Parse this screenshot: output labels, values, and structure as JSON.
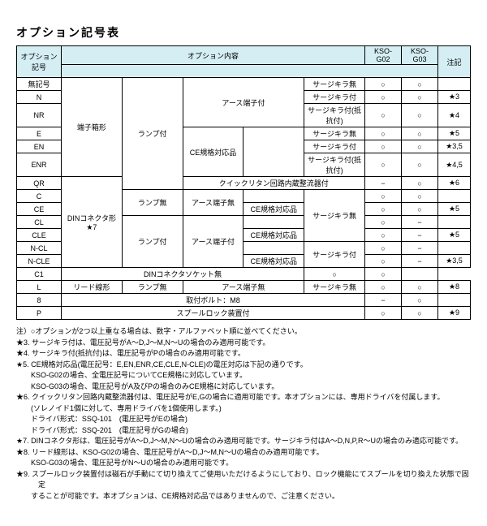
{
  "title": "オプション記号表",
  "headers": {
    "code": "オプション記号",
    "content": "オプション内容",
    "g02": "KSO-G02",
    "g03": "KSO-G03",
    "note": "注記"
  },
  "rows": [
    {
      "code": "無記号",
      "c5": "サージキラ無",
      "g02": "○",
      "g03": "○",
      "note": ""
    },
    {
      "code": "N",
      "c5": "サージキラ付",
      "g02": "○",
      "g03": "○",
      "note": "★3"
    },
    {
      "code": "NR",
      "c5": "サージキラ付(抵抗付)",
      "g02": "○",
      "g03": "○",
      "note": "★4"
    },
    {
      "code": "E",
      "c5": "サージキラ無",
      "g02": "○",
      "g03": "○",
      "note": "★5"
    },
    {
      "code": "EN",
      "c5": "サージキラ付",
      "g02": "○",
      "g03": "○",
      "note": "★3,5"
    },
    {
      "code": "ENR",
      "c5": "サージキラ付(抵抗付)",
      "g02": "○",
      "g03": "○",
      "note": "★4,5"
    },
    {
      "code": "QR",
      "c3q": "クイックリタン回路内蔵整流器付",
      "g02": "−",
      "g03": "○",
      "note": "★6"
    },
    {
      "code": "C",
      "g02": "○",
      "g03": "○",
      "note": ""
    },
    {
      "code": "CE",
      "c4c": "CE規格対応品",
      "g02": "○",
      "g03": "○",
      "note": "★5"
    },
    {
      "code": "CL",
      "g02": "○",
      "g03": "−",
      "note": ""
    },
    {
      "code": "CLE",
      "c4c": "CE規格対応品",
      "g02": "○",
      "g03": "−",
      "note": "★5"
    },
    {
      "code": "N-CL",
      "g02": "○",
      "g03": "−",
      "note": ""
    },
    {
      "code": "N-CLE",
      "c4c": "CE規格対応品",
      "g02": "○",
      "g03": "−",
      "note": "★3,5"
    },
    {
      "code": "C1",
      "c3d": "DINコネクタソケット無",
      "g02": "○",
      "g03": "○",
      "note": ""
    },
    {
      "code": "L",
      "c1": "リード線形",
      "c2": "ランプ無",
      "c3": "アース端子無",
      "c5": "サージキラ無",
      "g02": "○",
      "g03": "○",
      "note": "★8"
    },
    {
      "code": "8",
      "c3m": "取付ボルト：M8",
      "g02": "−",
      "g03": "○",
      "note": ""
    },
    {
      "code": "P",
      "c3p": "スプールロック装置付",
      "g02": "○",
      "g03": "○",
      "note": "★9"
    }
  ],
  "merged": {
    "c1a": "端子箱形",
    "c2a": "ランプ付",
    "c3a": "アース端子付",
    "c4a": "CE規格対応品",
    "c1b": "DINコネクタ形",
    "c1bn": "★7",
    "c2b": "ランプ無",
    "c2c": "ランプ付",
    "c3b": "アース端子無",
    "c3c": "アース端子付",
    "c5b": "サージキラ無",
    "c5c": "サージキラ付"
  },
  "notes": [
    "注）○オプションが2つ以上重なる場合は、数字・アルファベット順に並べてください。",
    "★3. サージキラ付は、電圧記号がA〜D,J〜M,N〜Uの場合のみ適用可能です。",
    "★4. サージキラ付(抵抗付)は、電圧記号がPの場合のみ適用可能です。",
    "★5. CE規格対応品(電圧記号：E,EN,ENR,CE,CLE,N-CLE)の電圧対応は下記の通りです。",
    "　　KSO-G02の場合、全電圧記号についてCE規格に対応しています。",
    "　　KSO-G03の場合、電圧記号がA及びPの場合のみCE規格に対応しています。",
    "★6. クイックリタン回路内蔵整流器付は、電圧記号がE,Gの場合に適用可能です。本オプションには、専用ドライバを付属します。",
    "　　(ソレノイド1個に対して、専用ドライバを1個使用します。)",
    "　　ドライバ形式：SSQ-101　(電圧記号がEの場合)",
    "　　ドライバ形式：SSQ-201　(電圧記号がGの場合)",
    "★7. DINコネクタ形は、電圧記号がA〜D,J〜M,N〜Uの場合のみ適用可能です。サージキラ付はA〜D,N,P,R〜Uの場合のみ適応可能です。",
    "★8. リード線形は、KSO-G02の場合、電圧記号がA〜D,J〜M,N〜Uの場合のみ適用可能です。",
    "　　KSO-G03の場合、電圧記号がN〜Uの場合のみ適用可能です。",
    "★9. スプールロック装置付は磁石が手動にて切り換えてご使用いただけるようにしており、ロック機能にてスプールを切り換えた状態で固定",
    "　　することが可能です。本オプションは、CE規格対応品ではありませんので、ご注意ください。"
  ]
}
